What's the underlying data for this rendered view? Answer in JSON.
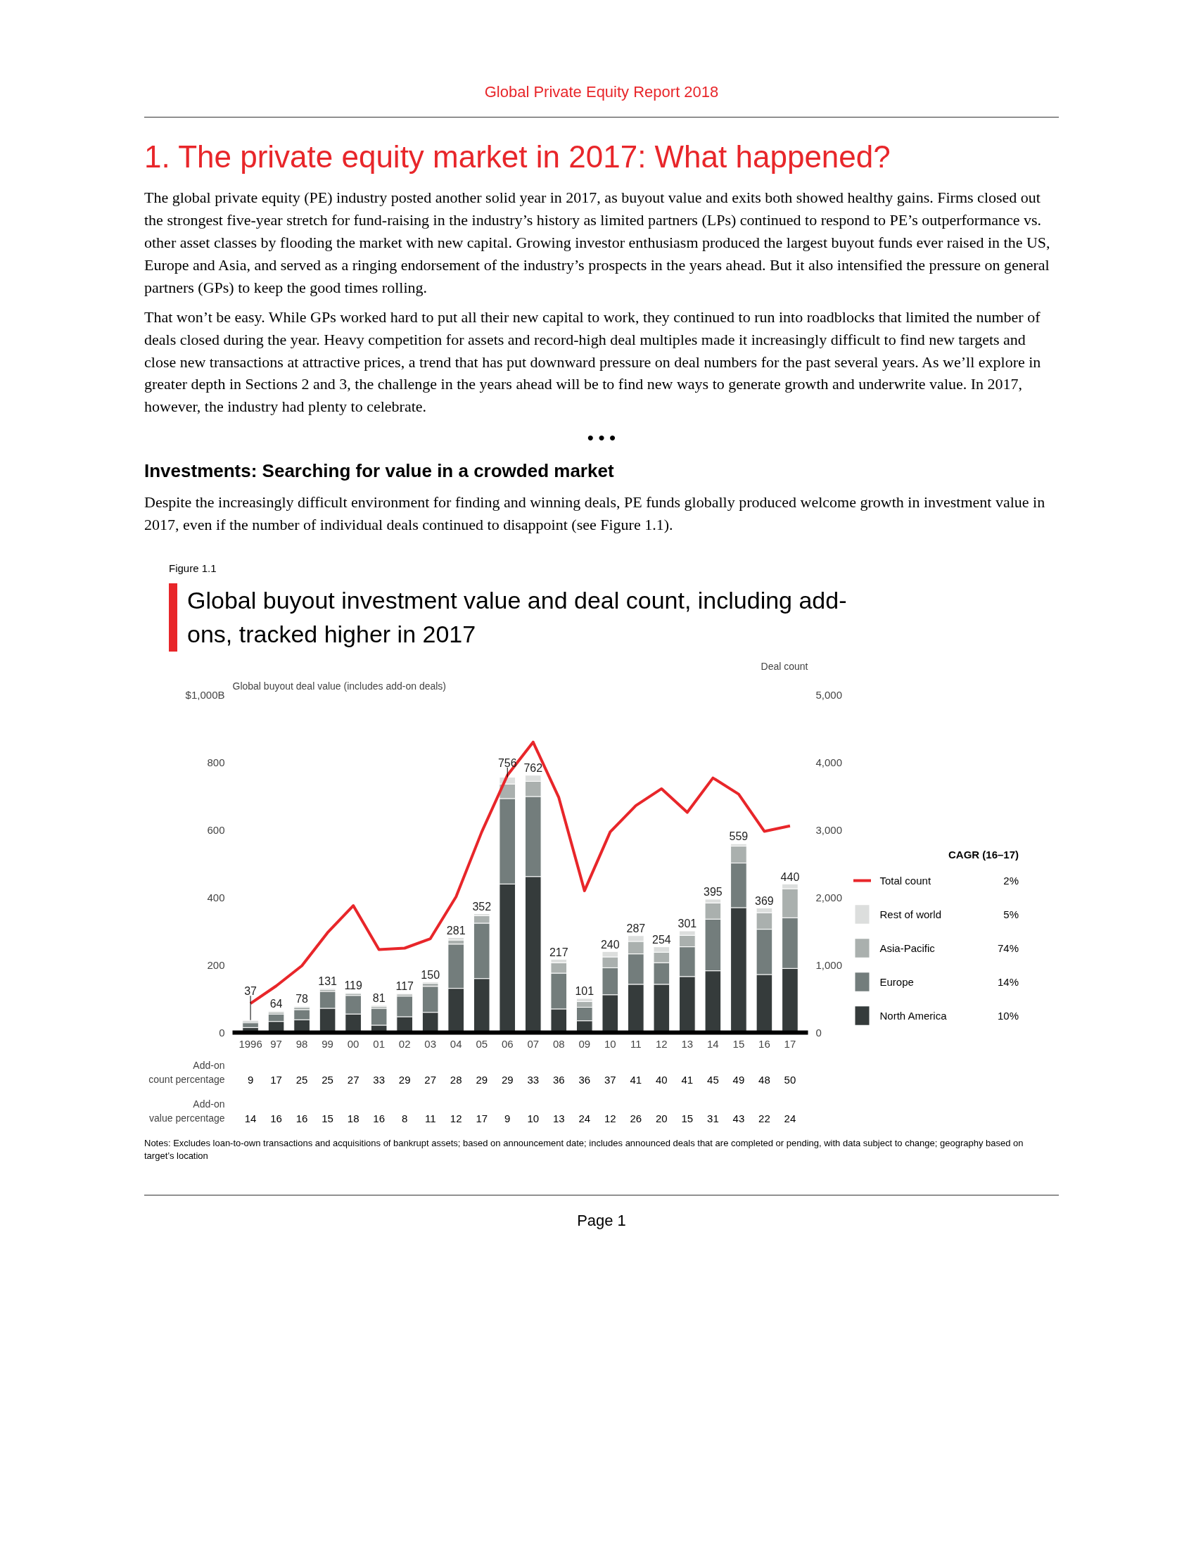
{
  "chart_data": {
    "type": "bar",
    "stacked": true,
    "title": "Global buyout investment value and deal count, including add-ons, tracked higher in 2017",
    "ylabel": "Global buyout deal value (includes add-on deals)",
    "y2label": "Deal count",
    "legend_title": "CAGR (16–17)",
    "categories": [
      "1996",
      "97",
      "98",
      "99",
      "00",
      "01",
      "02",
      "03",
      "04",
      "05",
      "06",
      "07",
      "08",
      "09",
      "10",
      "11",
      "12",
      "13",
      "14",
      "15",
      "16",
      "17"
    ],
    "series": [
      {
        "name": "North America",
        "color": "#353b3b",
        "values": [
          15,
          33,
          38,
          72,
          55,
          22,
          47,
          60,
          131,
          160,
          440,
          462,
          70,
          35,
          112,
          143,
          143,
          166,
          183,
          370,
          172,
          190
        ]
      },
      {
        "name": "Europe",
        "color": "#737d7c",
        "values": [
          14,
          22,
          30,
          50,
          55,
          50,
          61,
          77,
          131,
          164,
          253,
          237,
          106,
          40,
          80,
          90,
          64,
          88,
          153,
          132,
          134,
          150
        ]
      },
      {
        "name": "Asia-Pacific",
        "color": "#aab0ae",
        "values": [
          5,
          6,
          7,
          6,
          6,
          6,
          6,
          9,
          12,
          22,
          43,
          45,
          31,
          17,
          32,
          37,
          31,
          34,
          48,
          50,
          49,
          86
        ]
      },
      {
        "name": "Rest of world",
        "color": "#dcdedd",
        "values": [
          3,
          3,
          3,
          3,
          3,
          3,
          3,
          4,
          7,
          6,
          20,
          18,
          10,
          9,
          16,
          17,
          16,
          13,
          11,
          7,
          14,
          14
        ]
      },
      {
        "name": "Total count",
        "type": "line",
        "axis": "y2",
        "color": "#e8262a",
        "values": [
          430,
          690,
          990,
          1480,
          1880,
          1230,
          1250,
          1390,
          2010,
          2970,
          3810,
          4300,
          3480,
          2100,
          2970,
          3360,
          3610,
          3260,
          3770,
          3530,
          2980,
          3060
        ]
      }
    ],
    "totals": [
      "37",
      "64",
      "78",
      "131",
      "119",
      "81",
      "117",
      "150",
      "281",
      "352",
      "756",
      "762",
      "217",
      "101",
      "240",
      "287",
      "254",
      "301",
      "395",
      "559",
      "369",
      "440"
    ],
    "ylim": [
      0,
      1000
    ],
    "yticks": [
      0,
      200,
      400,
      600,
      800,
      {
        "value": 1000,
        "label": "$1,000B"
      }
    ],
    "y2lim": [
      0,
      5000
    ],
    "y2ticks": [
      0,
      {
        "value": 1000,
        "label": "1,000"
      },
      {
        "value": 2000,
        "label": "2,000"
      },
      {
        "value": 3000,
        "label": "3,000"
      },
      {
        "value": 4000,
        "label": "4,000"
      },
      {
        "value": 5000,
        "label": "5,000"
      }
    ],
    "grid": false,
    "legend": "right",
    "annotations": [
      "Global Private Equity Report 2018",
      "1. The private equity market in 2017: What happened?",
      "The global private equity (PE) industry posted another solid year in 2017, as buyout value and exits both showed healthy gains. Firms closed out the strongest five-year stretch for fund-raising in the industry’s history as limited partners (LPs) continued to respond to PE’s outperformance vs. other asset classes by flooding the market with new capital. Growing investor enthusiasm produced the largest buyout funds ever raised in the US, Europe and Asia, and served as a ringing endorsement of the industry’s prospects in the years ahead. But it also intensified the pressure on general partners (GPs) to keep the good times rolling.",
      "That won’t be easy. While GPs worked hard to put all their new capital to work, they continued to run into roadblocks that limited the number of deals closed during the year. Heavy competition for assets and record-high deal multiples made it increasingly difficult to find new targets and close new transactions at attractive prices, a trend that has put downward pressure on deal numbers for the past several years. As we’ll explore in greater depth in Sections 2 and 3, the challenge in the years ahead will be to find new ways to generate growth and underwrite value. In 2017, however, the industry had plenty to celebrate.",
      "• • •",
      "Investments: Searching for value in a crowded market",
      "Despite the increasingly difficult environment for finding and winning deals, PE funds globally produced welcome growth in investment value in 2017, even if the number of individual deals continued to disappoint (see Figure 1.1).",
      "Figure 1.1",
      "2%",
      "5%",
      "74%",
      "14%",
      "10%",
      "Add-on count percentage",
      "9",
      "17",
      "25",
      "25",
      "27",
      "33",
      "29",
      "27",
      "28",
      "29",
      "29",
      "33",
      "36",
      "36",
      "37",
      "41",
      "40",
      "41",
      "45",
      "49",
      "48",
      "50",
      "Add-on value percentage",
      "14",
      "16",
      "16",
      "15",
      "18",
      "16",
      "8",
      "11",
      "12",
      "17",
      "9",
      "10",
      "13",
      "24",
      "12",
      "26",
      "20",
      "15",
      "31",
      "43",
      "22",
      "24",
      "Notes: Excludes loan-to-own transactions and acquisitions of bankrupt assets; based on announcement date; includes announced deals that are completed or pending, with data subject to change; geography based on target’s location",
      "Page 1"
    ]
  }
}
